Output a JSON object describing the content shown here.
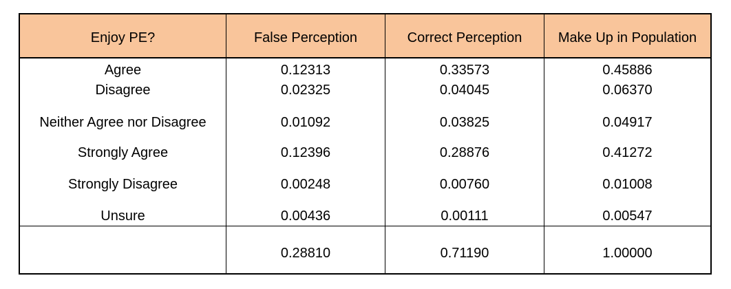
{
  "table": {
    "headers": [
      "Enjoy PE?",
      "False Perception",
      "Correct Perception",
      "Make Up in Population"
    ],
    "rows": [
      {
        "label": "Agree",
        "false_perception": "0.12313",
        "correct_perception": "0.33573",
        "make_up": "0.45886"
      },
      {
        "label": "Disagree",
        "false_perception": "0.02325",
        "correct_perception": "0.04045",
        "make_up": "0.06370"
      },
      {
        "label": "Neither Agree nor Disagree",
        "false_perception": "0.01092",
        "correct_perception": "0.03825",
        "make_up": "0.04917"
      },
      {
        "label": "Strongly Agree",
        "false_perception": "0.12396",
        "correct_perception": "0.28876",
        "make_up": "0.41272"
      },
      {
        "label": "Strongly Disagree",
        "false_perception": "0.00248",
        "correct_perception": "0.00760",
        "make_up": "0.01008"
      },
      {
        "label": "Unsure",
        "false_perception": "0.00436",
        "correct_perception": "0.00111",
        "make_up": "0.00547"
      }
    ],
    "totals": {
      "label": "",
      "false_perception": "0.28810",
      "correct_perception": "0.71190",
      "make_up": "1.00000"
    },
    "header_color": "#f9c59b"
  }
}
